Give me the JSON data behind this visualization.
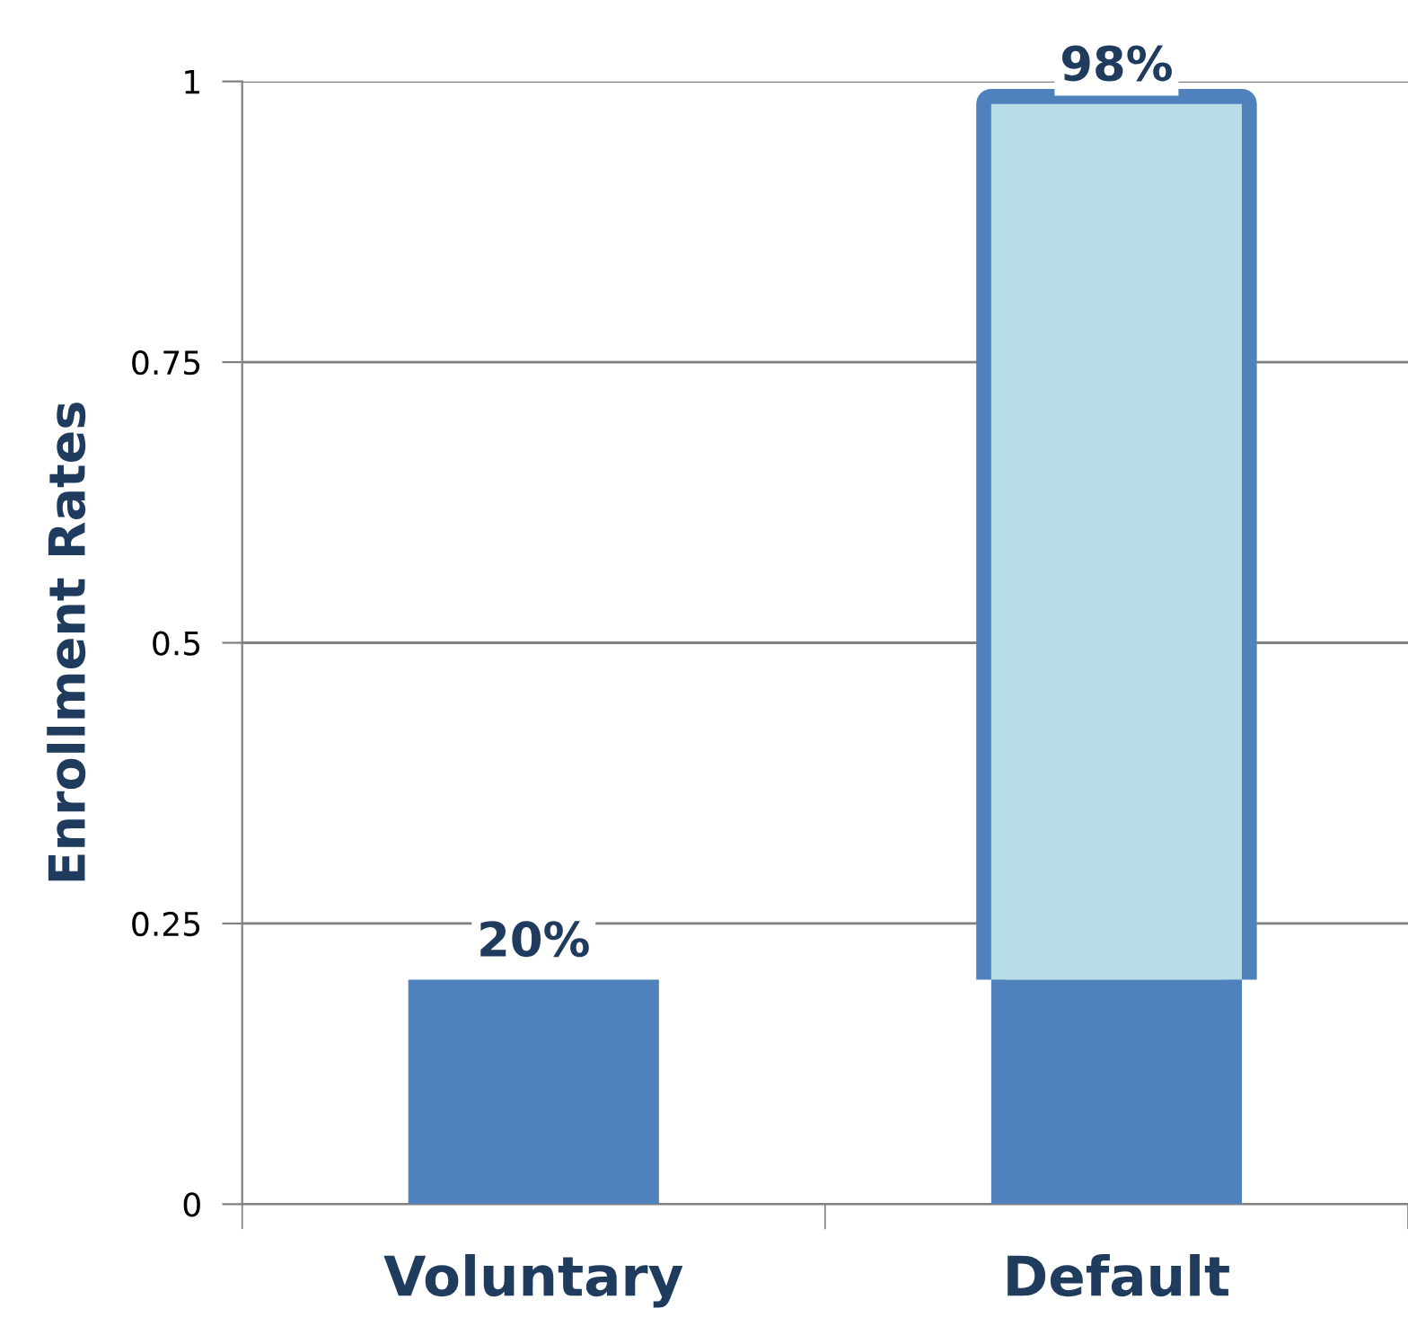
{
  "chart_data": {
    "type": "bar",
    "stacked": true,
    "ylabel": "Enrollment Rates",
    "categories": [
      "Voluntary",
      "Default"
    ],
    "series": [
      {
        "color": "#4f81bd",
        "values": [
          0.2,
          0.2
        ]
      },
      {
        "color": "#b7dde8",
        "values": [
          null,
          0.78
        ]
      }
    ],
    "totals": [
      "20%",
      "98%"
    ],
    "ylim": [
      0,
      1
    ],
    "yticks": [
      0,
      0.25,
      0.5,
      0.75,
      1
    ],
    "grid": "y"
  }
}
